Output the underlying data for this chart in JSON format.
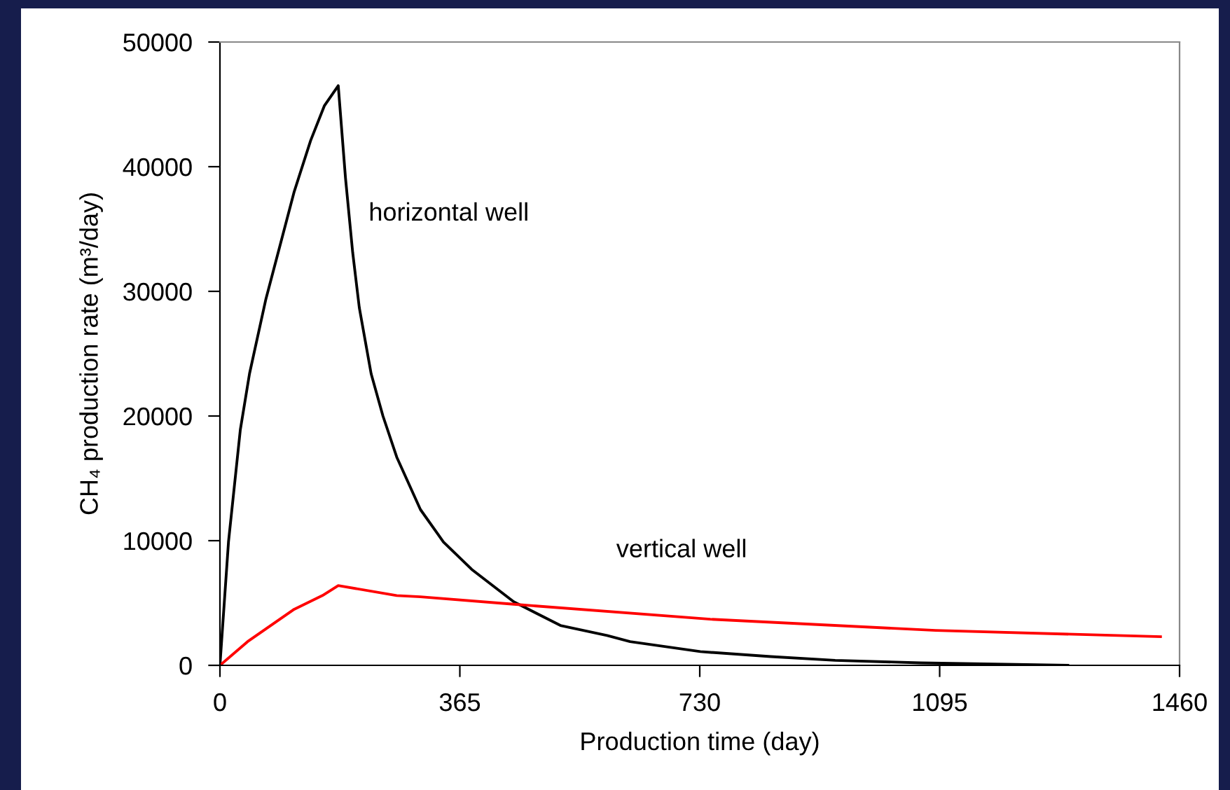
{
  "chart_data": {
    "type": "line",
    "xlabel": "Production time (day)",
    "ylabel": "CH₄ production rate (m³/day)",
    "xlim": [
      0,
      1460
    ],
    "xticks": [
      0,
      365,
      730,
      1095,
      1460
    ],
    "ylim": [
      0,
      50000
    ],
    "yticks": [
      0,
      10000,
      20000,
      30000,
      40000,
      50000
    ],
    "grid": false,
    "marker": "none",
    "line_style": "solid",
    "series": [
      {
        "color": "#000000",
        "x": [
          0,
          13,
          31,
          45,
          70,
          102,
          113,
          138,
          159,
          180,
          191,
          202,
          212,
          230,
          248,
          269,
          305,
          340,
          383,
          447,
          518,
          589,
          624,
          731,
          838,
          936,
          1066,
          1290
        ],
        "values": [
          0,
          9900,
          18900,
          23400,
          29400,
          35800,
          38000,
          42100,
          44900,
          46500,
          39100,
          33100,
          28700,
          23400,
          20000,
          16700,
          12500,
          9900,
          7700,
          5100,
          3200,
          2400,
          1900,
          1100,
          700,
          400,
          200,
          0
        ]
      },
      {
        "color": "#ff0000",
        "x": [
          0,
          42,
          113,
          156,
          180,
          269,
          305,
          447,
          746,
          1089,
          1431
        ],
        "values": [
          0,
          1900,
          4500,
          5600,
          6400,
          5600,
          5500,
          4900,
          3700,
          2800,
          2300
        ]
      }
    ],
    "annotations": [
      "horizontal well",
      "vertical well"
    ]
  }
}
